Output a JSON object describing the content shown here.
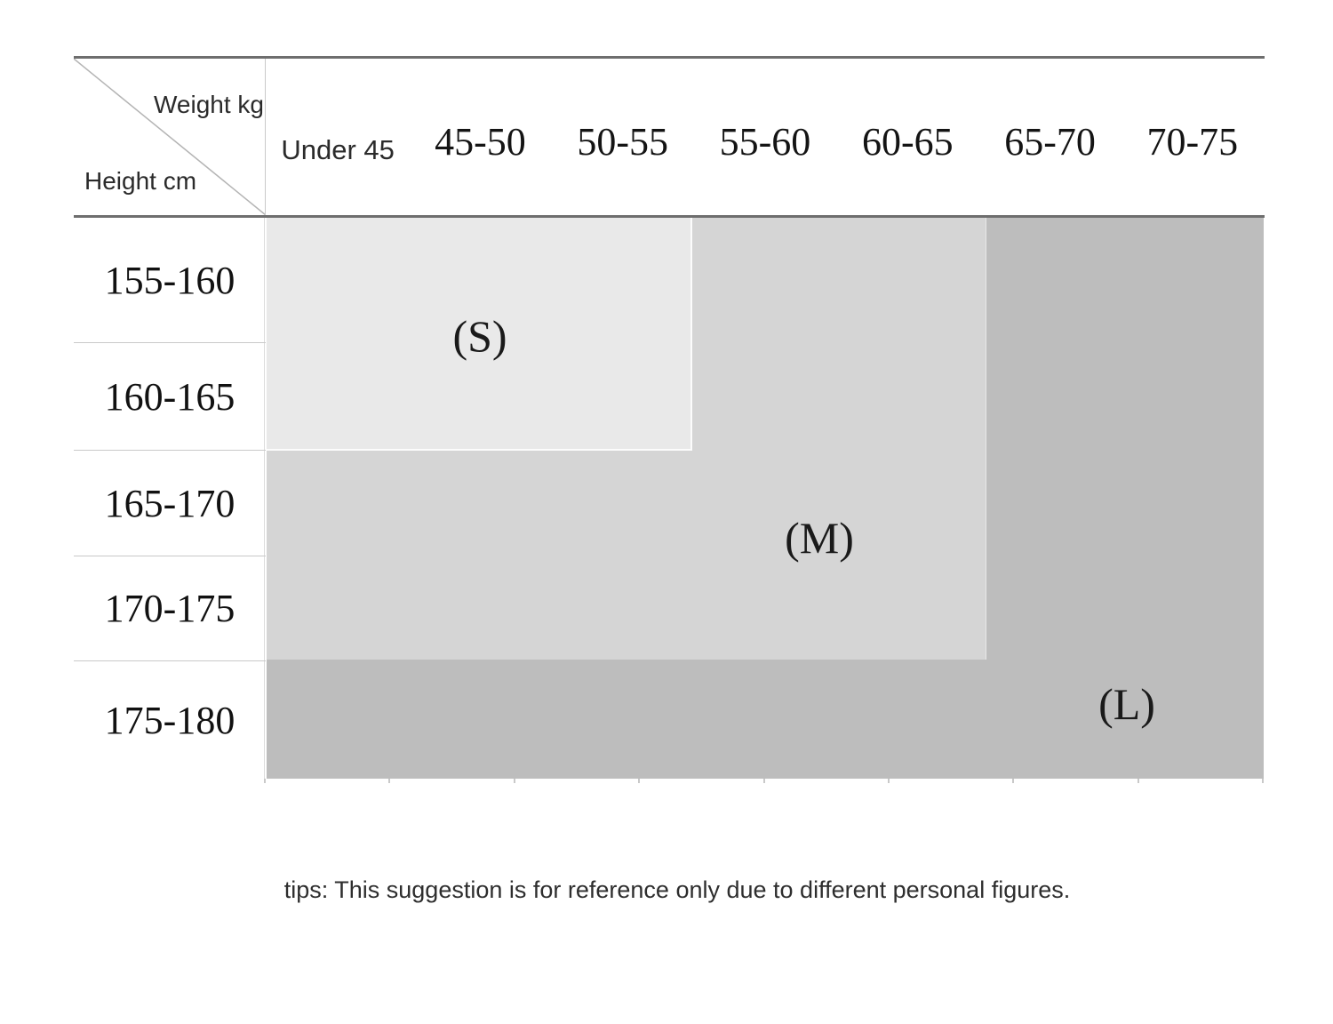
{
  "corner": {
    "weight_label": "Weight kg",
    "height_label": "Height cm"
  },
  "columns": [
    "Under 45",
    "45-50",
    "50-55",
    "55-60",
    "60-65",
    "65-70",
    "70-75"
  ],
  "rows": [
    "155-160",
    "160-165",
    "165-170",
    "170-175",
    "175-180"
  ],
  "zones": {
    "s": {
      "label": "(S)"
    },
    "m": {
      "label": "(M)"
    },
    "l": {
      "label": "(L)"
    }
  },
  "tip": {
    "text": "tips: This suggestion is for reference only due to different personal figures."
  },
  "colors": {
    "zone_s": "#e9e9e9",
    "zone_m": "#d5d5d5",
    "zone_l": "#bdbdbd",
    "heavy_border": "#6e6e6e",
    "light_line": "#c9c9c9"
  },
  "chart_data": {
    "type": "heatmap",
    "title": "",
    "x_axis_label": "Weight kg",
    "y_axis_label": "Height cm",
    "columns": [
      "Under 45",
      "45-50",
      "50-55",
      "55-60",
      "60-65",
      "65-70",
      "70-75"
    ],
    "rows": [
      "155-160",
      "160-165",
      "165-170",
      "170-175",
      "175-180"
    ],
    "cells": [
      [
        "S",
        "S",
        "S",
        "M",
        "M",
        "L",
        "L"
      ],
      [
        "S",
        "S",
        "S",
        "M",
        "M",
        "L",
        "L"
      ],
      [
        "M",
        "M",
        "M",
        "M",
        "M",
        "L",
        "L"
      ],
      [
        "M",
        "M",
        "M",
        "M",
        "M",
        "L",
        "L"
      ],
      [
        "L",
        "L",
        "L",
        "L",
        "L",
        "L",
        "L"
      ]
    ],
    "legend": [
      "S",
      "M",
      "L"
    ],
    "zone_colors": {
      "S": "#e9e9e9",
      "M": "#d5d5d5",
      "L": "#bdbdbd"
    },
    "note": "tips: This suggestion is for reference only due to different personal figures."
  }
}
